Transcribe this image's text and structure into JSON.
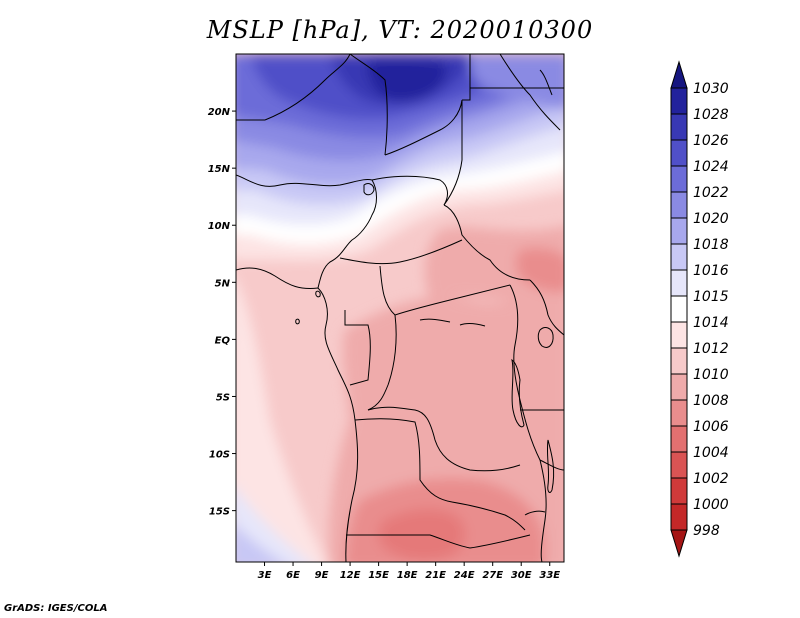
{
  "chart_data": {
    "type": "heatmap",
    "title": "MSLP [hPa], VT: 2020010300",
    "field": "Mean sea level pressure",
    "units": "hPa",
    "valid_time": "2020010300",
    "x_ticks": [
      "3E",
      "6E",
      "9E",
      "12E",
      "15E",
      "18E",
      "21E",
      "24E",
      "27E",
      "30E",
      "33E"
    ],
    "y_ticks": [
      "20N",
      "15N",
      "10N",
      "5N",
      "EQ",
      "5S",
      "10S",
      "15S"
    ],
    "xlim": [
      0,
      34.5
    ],
    "ylim": [
      -19.5,
      25
    ],
    "colorbar": {
      "levels": [
        998,
        1000,
        1002,
        1004,
        1006,
        1008,
        1010,
        1012,
        1014,
        1015,
        1016,
        1018,
        1020,
        1022,
        1024,
        1026,
        1028,
        1030
      ],
      "colors": [
        "#a51515",
        "#c42828",
        "#d03a3a",
        "#da5454",
        "#e27070",
        "#e98d8d",
        "#efabab",
        "#f7caca",
        "#fde4e4",
        "#ffffff",
        "#e6e6fa",
        "#c8c8f5",
        "#a8a8ed",
        "#8a8ae3",
        "#6c6cd8",
        "#5050c8",
        "#3838b4",
        "#22229c",
        "#161680"
      ]
    },
    "source": "GrADS: IGES/COLA"
  }
}
